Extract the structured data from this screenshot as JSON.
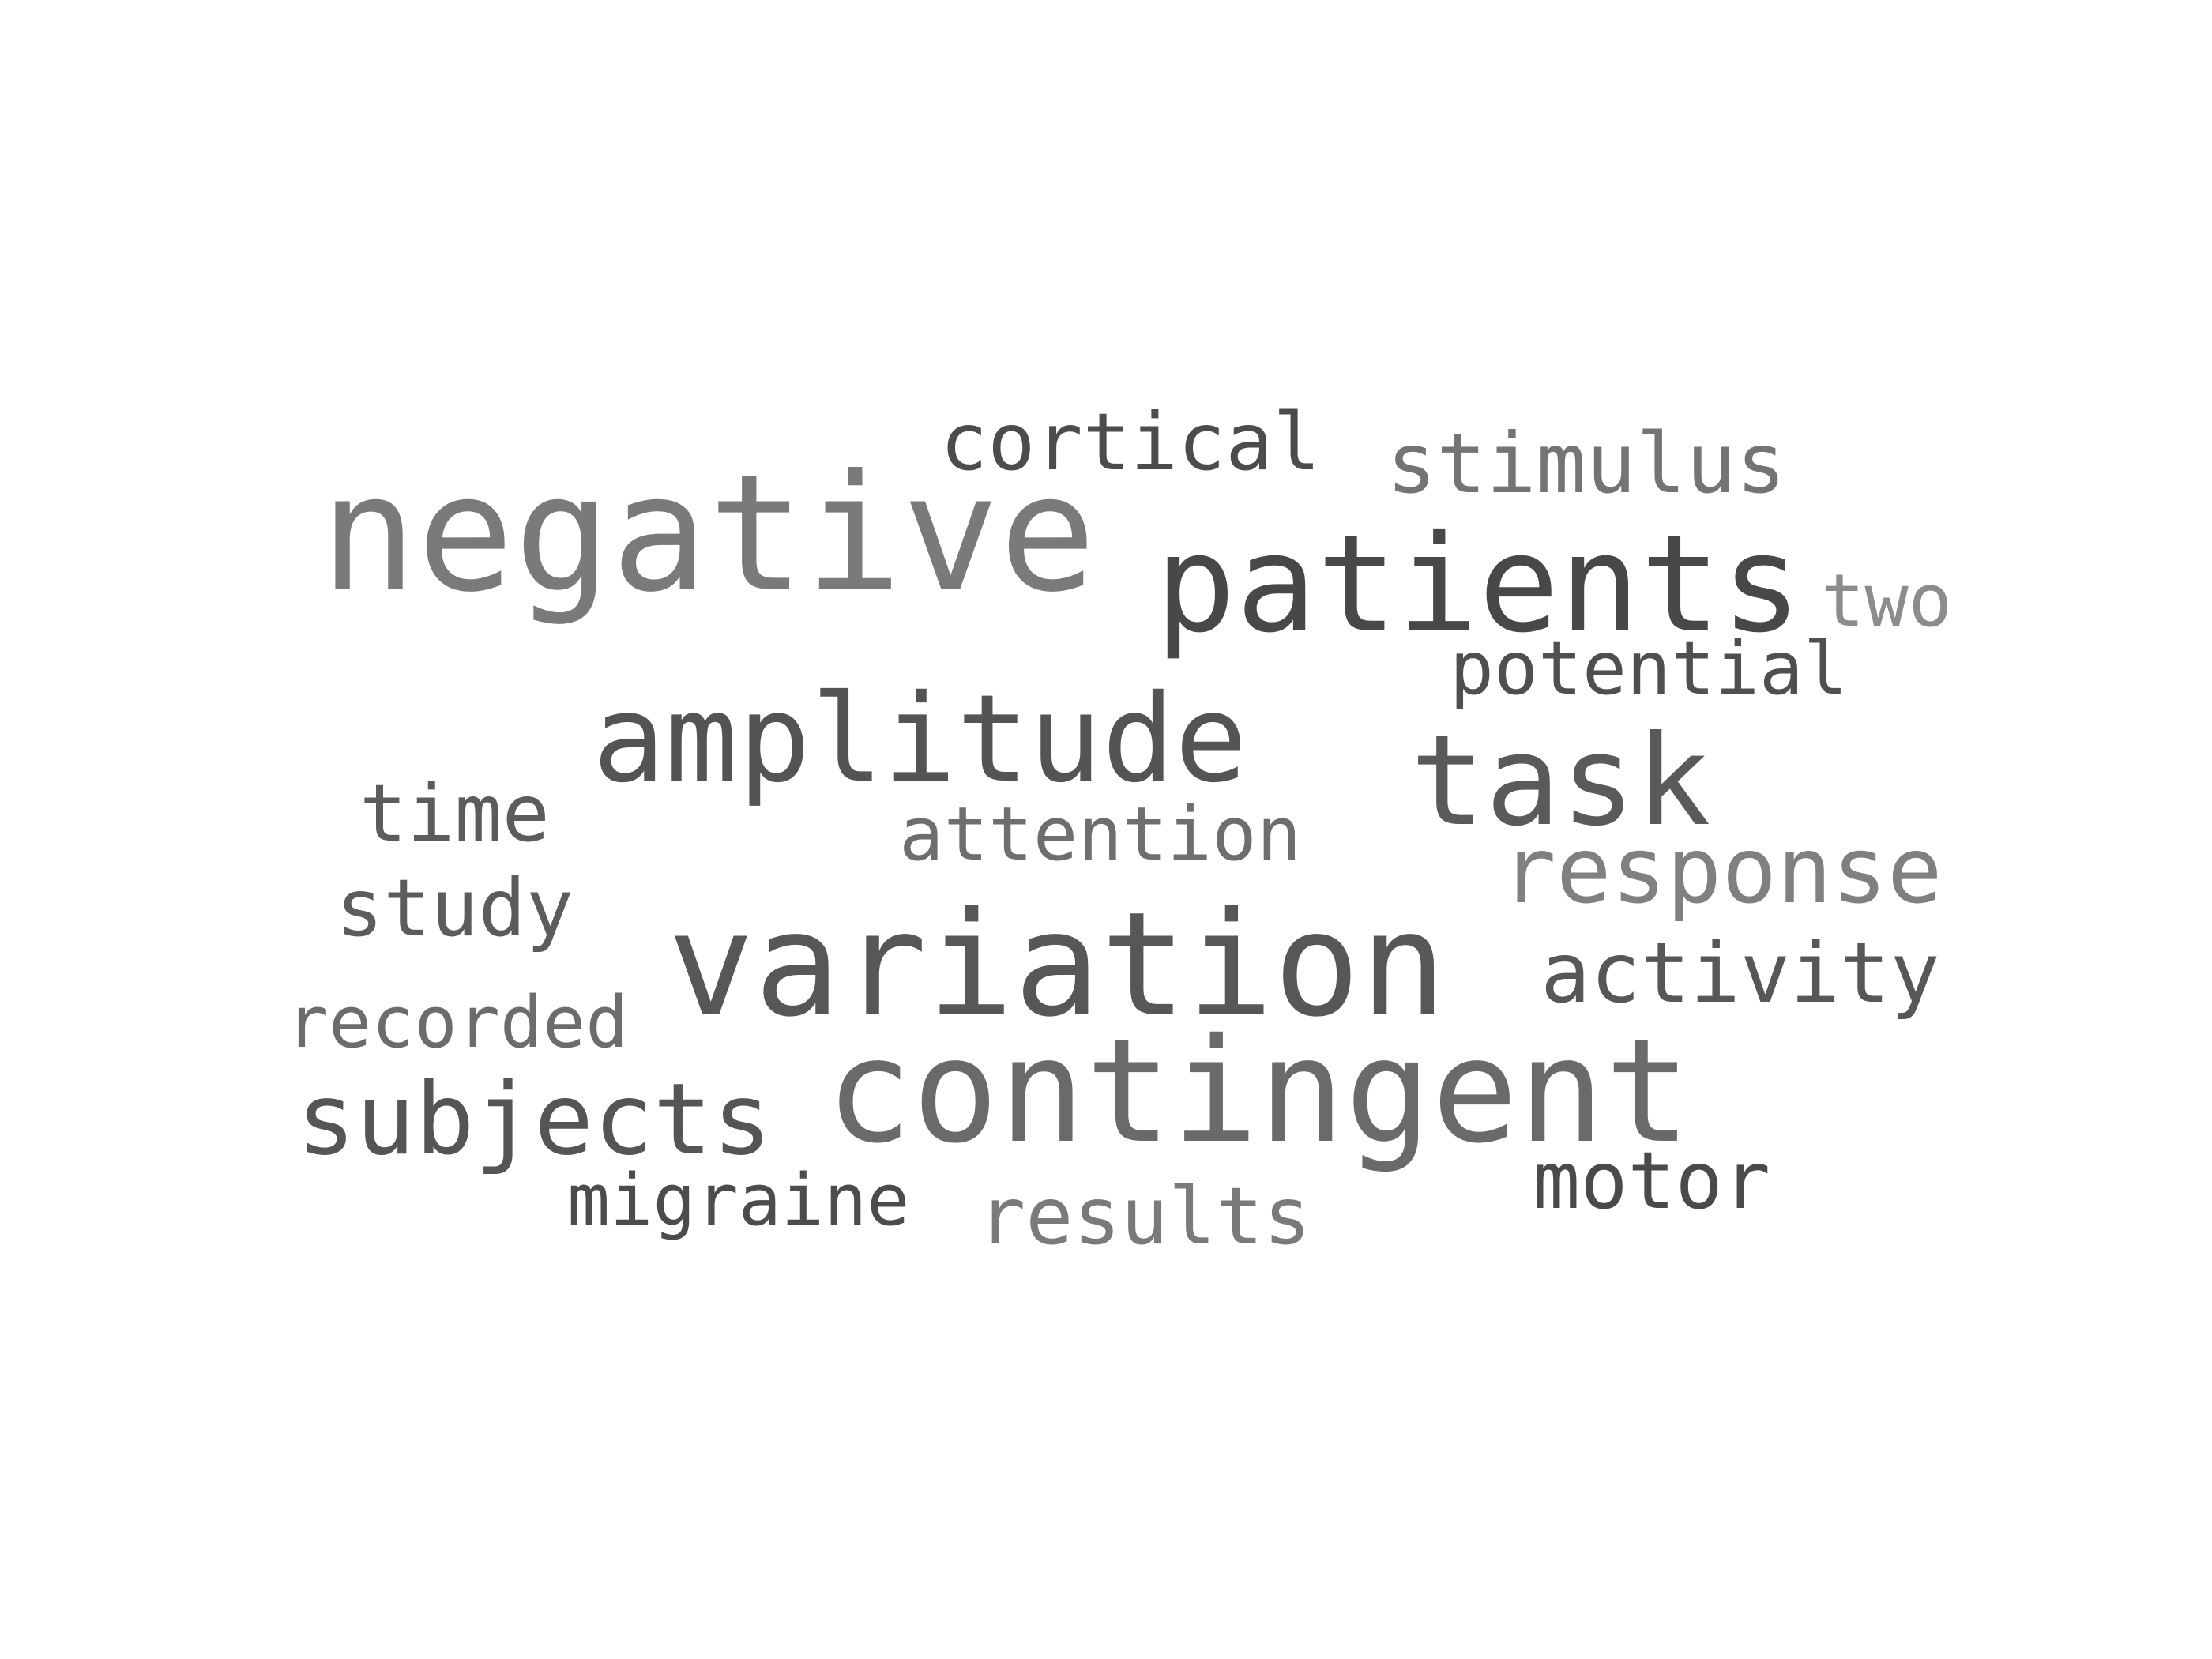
{
  "wordcloud": {
    "words": [
      {
        "text": "negative",
        "color": "#7a7a7a",
        "weight": 1.0
      },
      {
        "text": "patients",
        "color": "#484848",
        "weight": 0.92
      },
      {
        "text": "variation",
        "color": "#575757",
        "weight": 0.95
      },
      {
        "text": "contingent",
        "color": "#6a6a6a",
        "weight": 0.9
      },
      {
        "text": "amplitude",
        "color": "#545454",
        "weight": 0.78
      },
      {
        "text": "task",
        "color": "#5a5a5a",
        "weight": 0.72
      },
      {
        "text": "subjects",
        "color": "#555555",
        "weight": 0.62
      },
      {
        "text": "response",
        "color": "#808080",
        "weight": 0.55
      },
      {
        "text": "activity",
        "color": "#575757",
        "weight": 0.5
      },
      {
        "text": "stimulus",
        "color": "#747474",
        "weight": 0.5
      },
      {
        "text": "cortical",
        "color": "#4c4c4c",
        "weight": 0.48
      },
      {
        "text": "results",
        "color": "#7a7a7a",
        "weight": 0.47
      },
      {
        "text": "motor",
        "color": "#4a4a4a",
        "weight": 0.47
      },
      {
        "text": "study",
        "color": "#5c5c5c",
        "weight": 0.47
      },
      {
        "text": "time",
        "color": "#5c5c5c",
        "weight": 0.47
      },
      {
        "text": "attention",
        "color": "#6e6e6e",
        "weight": 0.45
      },
      {
        "text": "potential",
        "color": "#4f4f4f",
        "weight": 0.44
      },
      {
        "text": "migraine",
        "color": "#4c4c4c",
        "weight": 0.42
      },
      {
        "text": "recorded",
        "color": "#6c6c6c",
        "weight": 0.42
      },
      {
        "text": "two",
        "color": "#8c8c8c",
        "weight": 0.4
      }
    ]
  }
}
